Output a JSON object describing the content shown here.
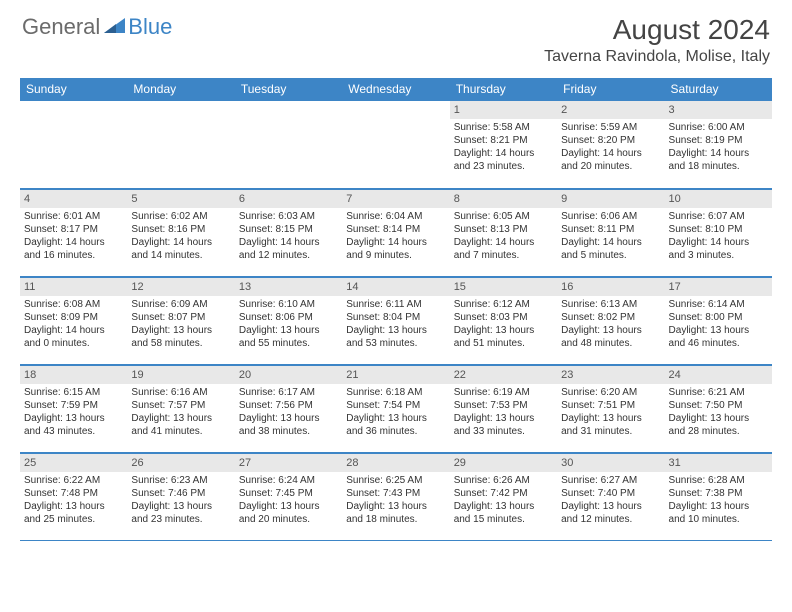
{
  "logo": {
    "general": "General",
    "blue": "Blue"
  },
  "header": {
    "title": "August 2024",
    "location": "Taverna Ravindola, Molise, Italy"
  },
  "theme": {
    "header_blue": "#3d85c6",
    "daynum_bg": "#e8e8e8",
    "text_color": "#333333",
    "border_color": "#3d85c6",
    "background": "#ffffff"
  },
  "weekdays": [
    "Sunday",
    "Monday",
    "Tuesday",
    "Wednesday",
    "Thursday",
    "Friday",
    "Saturday"
  ],
  "weeks": [
    [
      null,
      null,
      null,
      null,
      {
        "n": "1",
        "sr": "5:58 AM",
        "ss": "8:21 PM",
        "dl": "Daylight: 14 hours and 23 minutes."
      },
      {
        "n": "2",
        "sr": "5:59 AM",
        "ss": "8:20 PM",
        "dl": "Daylight: 14 hours and 20 minutes."
      },
      {
        "n": "3",
        "sr": "6:00 AM",
        "ss": "8:19 PM",
        "dl": "Daylight: 14 hours and 18 minutes."
      }
    ],
    [
      {
        "n": "4",
        "sr": "6:01 AM",
        "ss": "8:17 PM",
        "dl": "Daylight: 14 hours and 16 minutes."
      },
      {
        "n": "5",
        "sr": "6:02 AM",
        "ss": "8:16 PM",
        "dl": "Daylight: 14 hours and 14 minutes."
      },
      {
        "n": "6",
        "sr": "6:03 AM",
        "ss": "8:15 PM",
        "dl": "Daylight: 14 hours and 12 minutes."
      },
      {
        "n": "7",
        "sr": "6:04 AM",
        "ss": "8:14 PM",
        "dl": "Daylight: 14 hours and 9 minutes."
      },
      {
        "n": "8",
        "sr": "6:05 AM",
        "ss": "8:13 PM",
        "dl": "Daylight: 14 hours and 7 minutes."
      },
      {
        "n": "9",
        "sr": "6:06 AM",
        "ss": "8:11 PM",
        "dl": "Daylight: 14 hours and 5 minutes."
      },
      {
        "n": "10",
        "sr": "6:07 AM",
        "ss": "8:10 PM",
        "dl": "Daylight: 14 hours and 3 minutes."
      }
    ],
    [
      {
        "n": "11",
        "sr": "6:08 AM",
        "ss": "8:09 PM",
        "dl": "Daylight: 14 hours and 0 minutes."
      },
      {
        "n": "12",
        "sr": "6:09 AM",
        "ss": "8:07 PM",
        "dl": "Daylight: 13 hours and 58 minutes."
      },
      {
        "n": "13",
        "sr": "6:10 AM",
        "ss": "8:06 PM",
        "dl": "Daylight: 13 hours and 55 minutes."
      },
      {
        "n": "14",
        "sr": "6:11 AM",
        "ss": "8:04 PM",
        "dl": "Daylight: 13 hours and 53 minutes."
      },
      {
        "n": "15",
        "sr": "6:12 AM",
        "ss": "8:03 PM",
        "dl": "Daylight: 13 hours and 51 minutes."
      },
      {
        "n": "16",
        "sr": "6:13 AM",
        "ss": "8:02 PM",
        "dl": "Daylight: 13 hours and 48 minutes."
      },
      {
        "n": "17",
        "sr": "6:14 AM",
        "ss": "8:00 PM",
        "dl": "Daylight: 13 hours and 46 minutes."
      }
    ],
    [
      {
        "n": "18",
        "sr": "6:15 AM",
        "ss": "7:59 PM",
        "dl": "Daylight: 13 hours and 43 minutes."
      },
      {
        "n": "19",
        "sr": "6:16 AM",
        "ss": "7:57 PM",
        "dl": "Daylight: 13 hours and 41 minutes."
      },
      {
        "n": "20",
        "sr": "6:17 AM",
        "ss": "7:56 PM",
        "dl": "Daylight: 13 hours and 38 minutes."
      },
      {
        "n": "21",
        "sr": "6:18 AM",
        "ss": "7:54 PM",
        "dl": "Daylight: 13 hours and 36 minutes."
      },
      {
        "n": "22",
        "sr": "6:19 AM",
        "ss": "7:53 PM",
        "dl": "Daylight: 13 hours and 33 minutes."
      },
      {
        "n": "23",
        "sr": "6:20 AM",
        "ss": "7:51 PM",
        "dl": "Daylight: 13 hours and 31 minutes."
      },
      {
        "n": "24",
        "sr": "6:21 AM",
        "ss": "7:50 PM",
        "dl": "Daylight: 13 hours and 28 minutes."
      }
    ],
    [
      {
        "n": "25",
        "sr": "6:22 AM",
        "ss": "7:48 PM",
        "dl": "Daylight: 13 hours and 25 minutes."
      },
      {
        "n": "26",
        "sr": "6:23 AM",
        "ss": "7:46 PM",
        "dl": "Daylight: 13 hours and 23 minutes."
      },
      {
        "n": "27",
        "sr": "6:24 AM",
        "ss": "7:45 PM",
        "dl": "Daylight: 13 hours and 20 minutes."
      },
      {
        "n": "28",
        "sr": "6:25 AM",
        "ss": "7:43 PM",
        "dl": "Daylight: 13 hours and 18 minutes."
      },
      {
        "n": "29",
        "sr": "6:26 AM",
        "ss": "7:42 PM",
        "dl": "Daylight: 13 hours and 15 minutes."
      },
      {
        "n": "30",
        "sr": "6:27 AM",
        "ss": "7:40 PM",
        "dl": "Daylight: 13 hours and 12 minutes."
      },
      {
        "n": "31",
        "sr": "6:28 AM",
        "ss": "7:38 PM",
        "dl": "Daylight: 13 hours and 10 minutes."
      }
    ]
  ],
  "labels": {
    "sunrise_prefix": "Sunrise: ",
    "sunset_prefix": "Sunset: "
  }
}
